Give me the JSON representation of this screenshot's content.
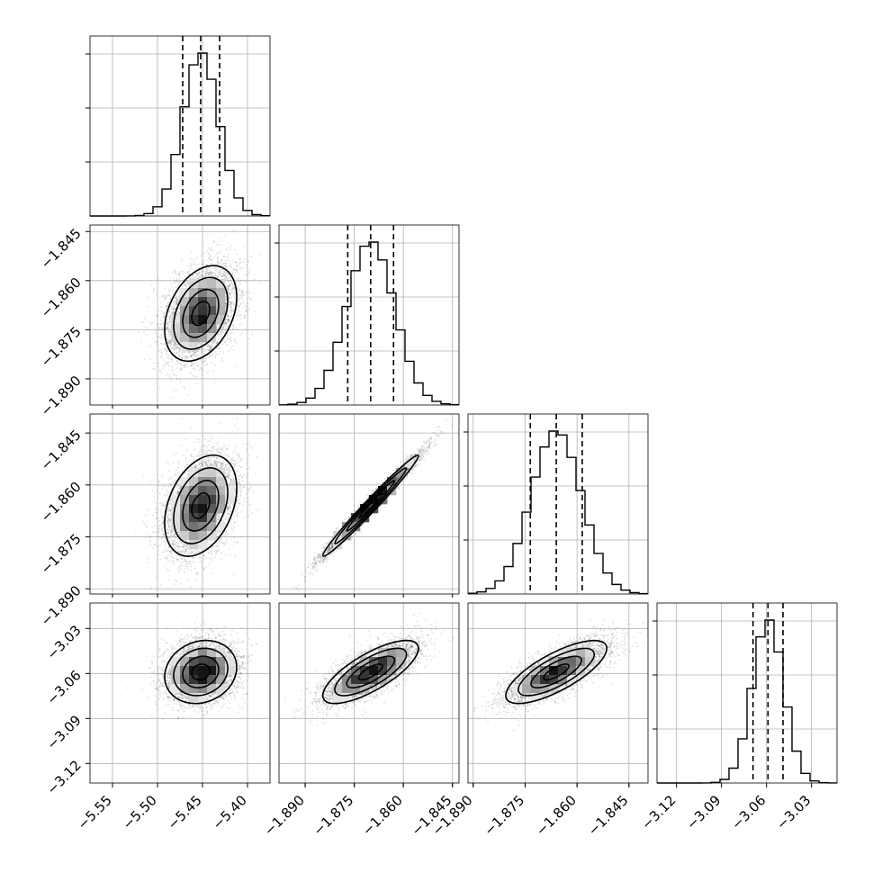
{
  "chart_data": {
    "type": "corner",
    "params": [
      {
        "mean": -5.452,
        "sd": 0.02,
        "ticks": [
          -5.55,
          -5.5,
          -5.45,
          -5.4
        ],
        "tick_labels": [
          "−5.55",
          "−5.50",
          "−5.45",
          "−5.40"
        ],
        "range": [
          -5.575,
          -5.375
        ],
        "quantiles": [
          -5.472,
          -5.452,
          -5.431
        ]
      },
      {
        "mean": -1.87,
        "sd": 0.0073,
        "ticks": [
          -1.89,
          -1.875,
          -1.86,
          -1.845
        ],
        "tick_labels": [
          "−1.890",
          "−1.875",
          "−1.860",
          "−1.845"
        ],
        "range": [
          -1.898,
          -1.843
        ],
        "quantiles": [
          -1.877,
          -1.87,
          -1.863
        ]
      },
      {
        "mean": -1.866,
        "sd": 0.0073,
        "ticks": [
          -1.89,
          -1.875,
          -1.86,
          -1.845
        ],
        "tick_labels": [
          "−1.890",
          "−1.875",
          "−1.860",
          "−1.845"
        ],
        "range": [
          -1.8915,
          -1.8395
        ],
        "quantiles": [
          -1.8735,
          -1.866,
          -1.8585
        ]
      },
      {
        "mean": -3.059,
        "sd": 0.0105,
        "ticks": [
          -3.12,
          -3.09,
          -3.06,
          -3.03
        ],
        "tick_labels": [
          "−3.12",
          "−3.09",
          "−3.06",
          "−3.03"
        ],
        "range": [
          -3.133,
          -3.013
        ],
        "quantiles": [
          -3.069,
          -3.059,
          -3.049
        ]
      }
    ],
    "correlations": [
      [
        0,
        1,
        0.35
      ],
      [
        0,
        2,
        0.35
      ],
      [
        1,
        2,
        0.985
      ],
      [
        0,
        3,
        0.15
      ],
      [
        1,
        3,
        0.75
      ],
      [
        2,
        3,
        0.75
      ]
    ],
    "grid": true,
    "contour_levels": 3,
    "histogram_bins": 20
  }
}
